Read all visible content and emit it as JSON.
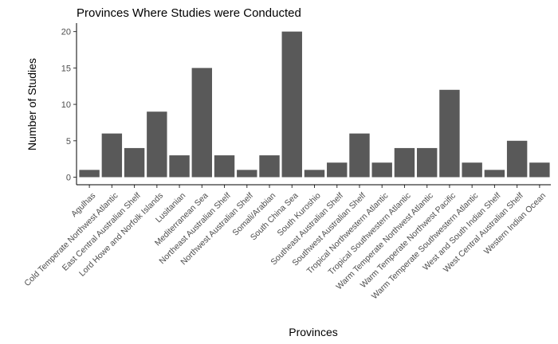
{
  "chart_data": {
    "type": "bar",
    "title": "Provinces Where Studies were Conducted",
    "xlabel": "Provinces",
    "ylabel": "Number of Studies",
    "ylim": [
      0,
      21
    ],
    "yticks": [
      0,
      5,
      10,
      15,
      20
    ],
    "grid": false,
    "bar_color": "#595959",
    "categories": [
      "Agulhas",
      "Cold Temperate Northwest Atlantic",
      "East Central Australian Shelf",
      "Lord Howe and Norfolk Islands",
      "Lusitanian",
      "Mediterranean Sea",
      "Northeast Australian Shelf",
      "Northwest Australian Shelf",
      "Somali/Arabian",
      "South China Sea",
      "South Kuroshio",
      "Southeast Australian Shelf",
      "Southwest Australian Shelf",
      "Tropical Northwestern Atlantic",
      "Tropical Southwestern Atlantic",
      "Warm Temperate Northwest Atlantic",
      "Warm Temperate Northwest Pacific",
      "Warm Temperate Southwestern Atlantic",
      "West and South Indian Shelf",
      "West Central Australian Shelf",
      "Western Indian Ocean"
    ],
    "values": [
      1,
      6,
      4,
      9,
      3,
      15,
      3,
      1,
      3,
      20,
      1,
      2,
      6,
      2,
      4,
      4,
      12,
      2,
      1,
      5,
      2
    ]
  }
}
